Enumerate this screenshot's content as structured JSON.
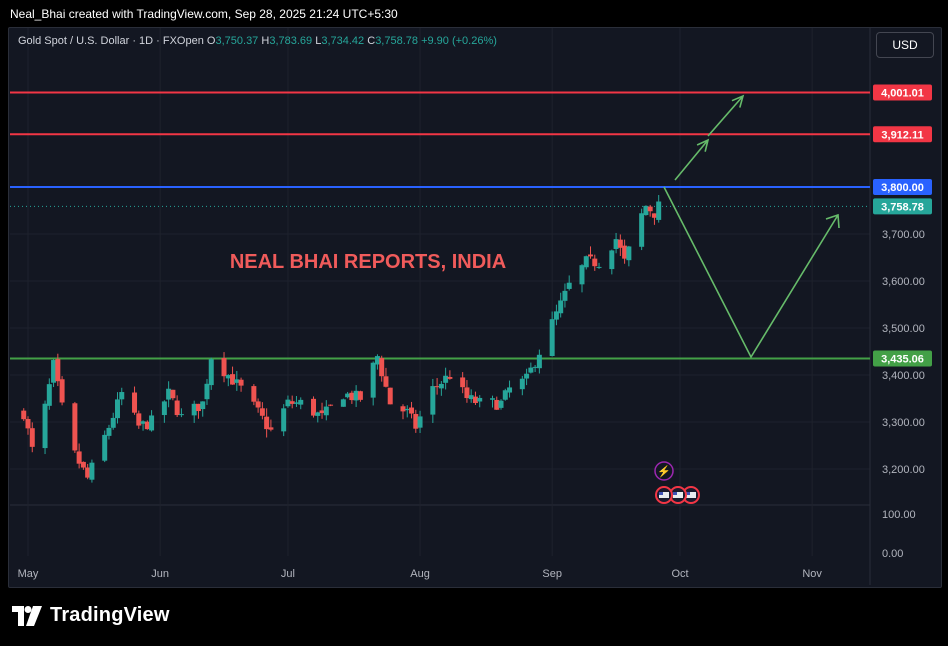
{
  "header": {
    "attribution": "Neal_Bhai created with TradingView.com, Sep 28, 2025 21:24 UTC+5:30"
  },
  "legend": {
    "symbol": "Gold Spot / U.S. Dollar · 1D · FXOpen",
    "o_label": "O",
    "o": "3,750.37",
    "h_label": "H",
    "h": "3,783.69",
    "l_label": "L",
    "l": "3,734.42",
    "c_label": "C",
    "c": "3,758.78",
    "change": "+9.90 (+0.26%)"
  },
  "currency_button": "USD",
  "brand": {
    "name": "TradingView"
  },
  "colors": {
    "up": "#26a69a",
    "down": "#ef5350",
    "background": "#131722",
    "resistance": "#f23645",
    "pivot": "#2962ff",
    "support": "#43a047",
    "arrow": "#66bb6a",
    "watermark": "#f05b5b",
    "grid": "#1e222d"
  },
  "chart_data": {
    "type": "candlestick",
    "title": "NEAL BHAI REPORTS, INDIA",
    "x_tick_labels": [
      "May",
      "Jun",
      "Jul",
      "Aug",
      "Sep",
      "Oct",
      "Nov"
    ],
    "y_tick_labels": [
      "3,700.00",
      "3,600.00",
      "3,500.00",
      "3,400.00",
      "3,300.00",
      "3,200.00"
    ],
    "volume_ticks": [
      "100.00",
      "0.00"
    ],
    "horizontal_levels": [
      {
        "label": "4,001.01",
        "value": 4001.01,
        "color": "#f23645"
      },
      {
        "label": "3,912.11",
        "value": 3912.11,
        "color": "#f23645"
      },
      {
        "label": "3,800.00",
        "value": 3800.0,
        "color": "#2962ff"
      },
      {
        "label": "3,435.06",
        "value": 3435.06,
        "color": "#43a047"
      }
    ],
    "last_price": {
      "label": "3,758.78",
      "value": 3758.78
    },
    "close_trend": [
      [
        "2025-04-30",
        3320
      ],
      [
        "2025-05-02",
        3240
      ],
      [
        "2025-05-05",
        3330
      ],
      [
        "2025-05-07",
        3420
      ],
      [
        "2025-05-09",
        3330
      ],
      [
        "2025-05-12",
        3230
      ],
      [
        "2025-05-15",
        3180
      ],
      [
        "2025-05-20",
        3290
      ],
      [
        "2025-05-23",
        3360
      ],
      [
        "2025-05-27",
        3290
      ],
      [
        "2025-05-30",
        3300
      ],
      [
        "2025-06-03",
        3360
      ],
      [
        "2025-06-06",
        3310
      ],
      [
        "2025-06-11",
        3340
      ],
      [
        "2025-06-13",
        3440
      ],
      [
        "2025-06-17",
        3400
      ],
      [
        "2025-06-20",
        3370
      ],
      [
        "2025-06-24",
        3320
      ],
      [
        "2025-06-27",
        3280
      ],
      [
        "2025-07-01",
        3340
      ],
      [
        "2025-07-04",
        3340
      ],
      [
        "2025-07-09",
        3310
      ],
      [
        "2025-07-14",
        3360
      ],
      [
        "2025-07-18",
        3350
      ],
      [
        "2025-07-22",
        3440
      ],
      [
        "2025-07-25",
        3340
      ],
      [
        "2025-07-29",
        3320
      ],
      [
        "2025-07-31",
        3290
      ],
      [
        "2025-08-04",
        3370
      ],
      [
        "2025-08-08",
        3400
      ],
      [
        "2025-08-12",
        3350
      ],
      [
        "2025-08-15",
        3340
      ],
      [
        "2025-08-20",
        3340
      ],
      [
        "2025-08-22",
        3370
      ],
      [
        "2025-08-26",
        3390
      ],
      [
        "2025-08-29",
        3450
      ],
      [
        "2025-09-02",
        3530
      ],
      [
        "2025-09-05",
        3590
      ],
      [
        "2025-09-09",
        3640
      ],
      [
        "2025-09-12",
        3640
      ],
      [
        "2025-09-16",
        3690
      ],
      [
        "2025-09-18",
        3640
      ],
      [
        "2025-09-22",
        3740
      ],
      [
        "2025-09-23",
        3760
      ],
      [
        "2025-09-25",
        3745
      ],
      [
        "2025-09-26",
        3758.78
      ]
    ]
  }
}
